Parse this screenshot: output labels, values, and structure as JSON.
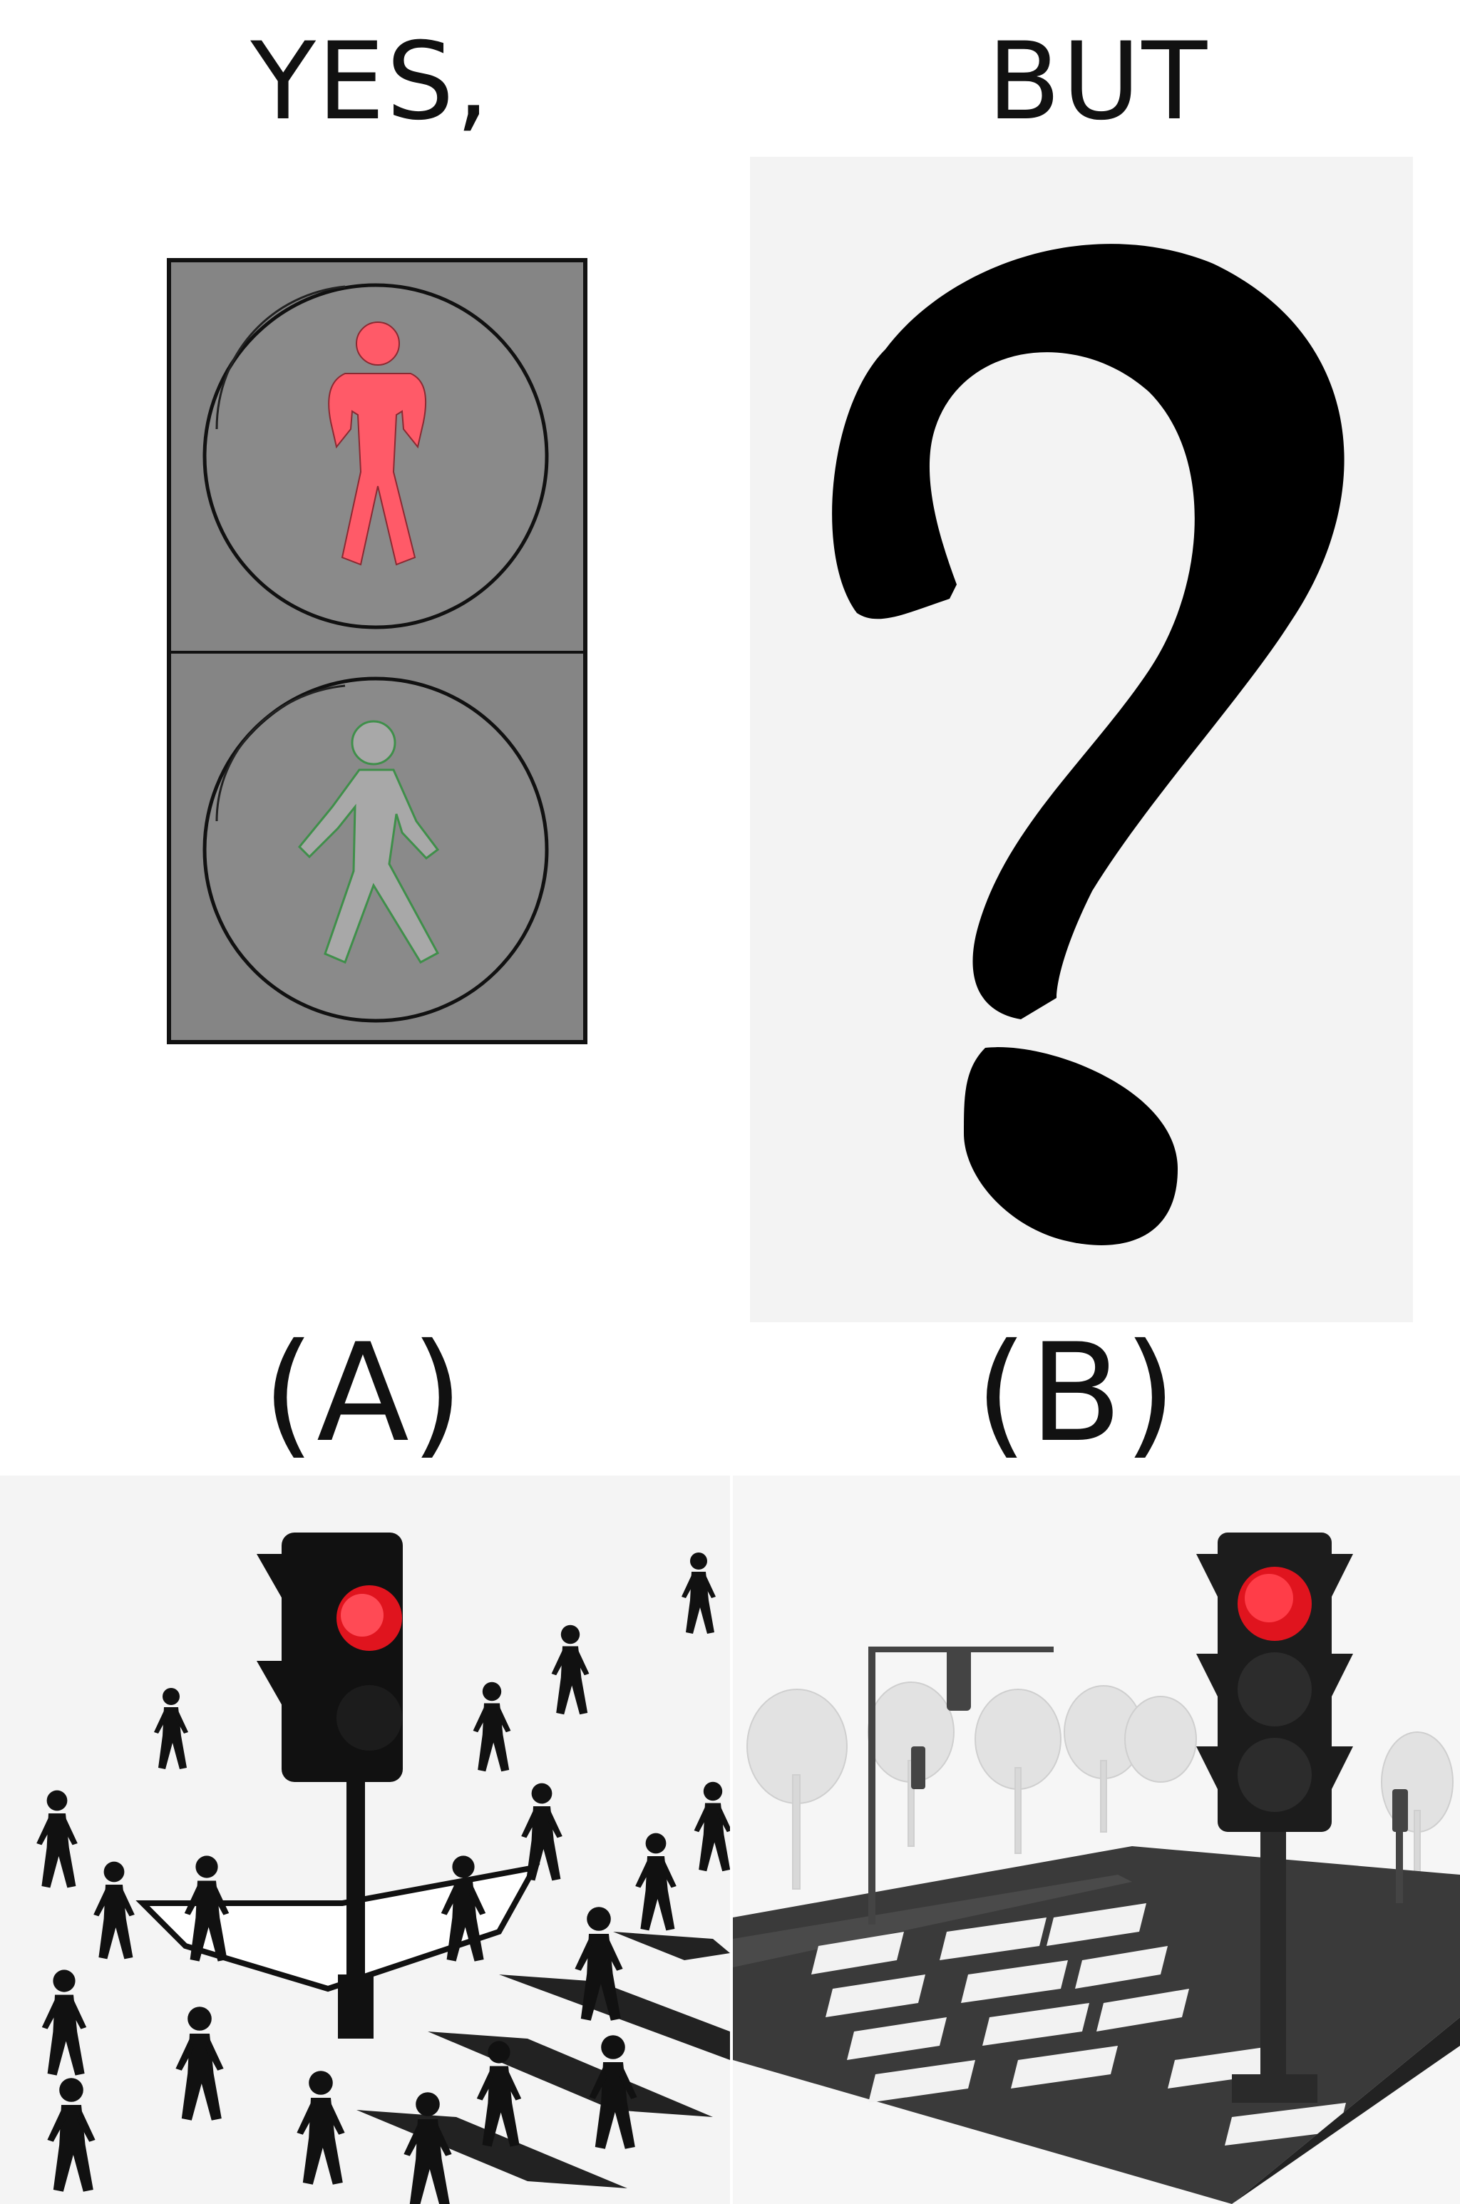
{
  "headings": {
    "left": "YES,",
    "right": "BUT"
  },
  "options": {
    "a": "(A)",
    "b": "(B)"
  },
  "icons": {
    "top_left": "pedestrian-signal-icon",
    "top_right": "question-mark-icon",
    "bottom_left": "traffic-light-crowd-scene",
    "bottom_right": "traffic-light-crosswalk-scene"
  },
  "colors": {
    "stop_red": "#ff5a68",
    "walk_grey": "#a8a8a8",
    "walk_outline": "#3f8f4a",
    "housing_grey": "#858585",
    "signal_red": "#e0141e"
  }
}
